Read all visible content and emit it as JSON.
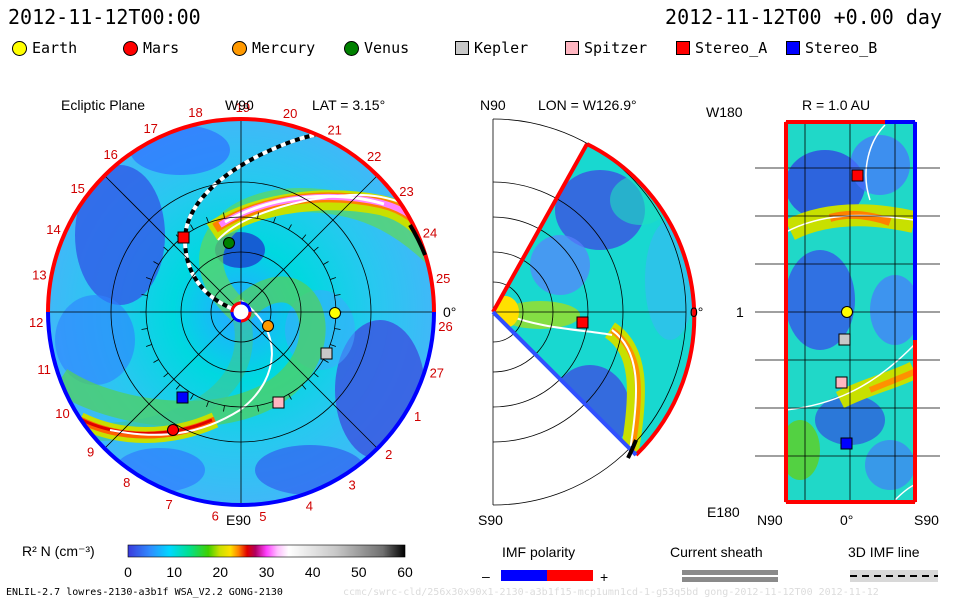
{
  "header": {
    "time_left": "2012-11-12T00:00",
    "time_right": "2012-11-12T00 +0.00 day"
  },
  "legend": [
    {
      "name": "Earth",
      "shape": "dot",
      "color": "#ffff00"
    },
    {
      "name": "Mars",
      "shape": "dot",
      "color": "#ff0000"
    },
    {
      "name": "Mercury",
      "shape": "dot",
      "color": "#ff9900"
    },
    {
      "name": "Venus",
      "shape": "dot",
      "color": "#008000"
    },
    {
      "name": "Kepler",
      "shape": "square",
      "color": "#c8c8c8"
    },
    {
      "name": "Spitzer",
      "shape": "square",
      "color": "#ffb6c1"
    },
    {
      "name": "Stereo_A",
      "shape": "square",
      "color": "#ff0000"
    },
    {
      "name": "Stereo_B",
      "shape": "square",
      "color": "#0000ff"
    }
  ],
  "panels": {
    "ecliptic": {
      "title": "Ecliptic Plane",
      "lat": "LAT = 3.15°",
      "top_label": "W90",
      "bottom_label": "E90",
      "right_label": "0°",
      "sector_numbers": [
        "1",
        "2",
        "3",
        "4",
        "5",
        "6",
        "7",
        "8",
        "9",
        "10",
        "11",
        "12",
        "13",
        "14",
        "15",
        "16",
        "17",
        "18",
        "19",
        "20",
        "21",
        "22",
        "23",
        "24",
        "25",
        "26",
        "27"
      ]
    },
    "meridional": {
      "title": "LON = W126.9°",
      "top_label": "N90",
      "bottom_label": "S90",
      "right_label": "0°"
    },
    "radial": {
      "title": "R = 1.0 AU",
      "top_label": "W180",
      "mid_label": "1",
      "bottom_label": "E180",
      "x_labels": [
        "N90",
        "0°",
        "S90"
      ]
    }
  },
  "colorbar": {
    "label": "R² N (cm⁻³)",
    "ticks": [
      "0",
      "10",
      "20",
      "30",
      "40",
      "50",
      "60"
    ]
  },
  "imf": {
    "title": "IMF polarity",
    "minus": "–",
    "plus": "+",
    "colors": [
      "#0000ff",
      "#ff0000"
    ]
  },
  "sheath": {
    "title": "Current sheath"
  },
  "line3d": {
    "title": "3D IMF line"
  },
  "footer": {
    "left": "ENLIL-2.7 lowres-2130-a3b1f WSA_V2.2 GONG-2130",
    "right": "ccmc/swrc-cld/256x30x90x1-2130-a3b1f15-mcp1umn1cd-1-g53q5bd gong-2012-11-12T00   2012-11-12"
  },
  "chart_data": {
    "type": "heatmap",
    "title": "2012-11-12T00:00",
    "quantity": "R² N (cm⁻³)",
    "scale_range": [
      0,
      60
    ],
    "colorbar_ticks": [
      0,
      10,
      20,
      30,
      40,
      50,
      60
    ],
    "bodies": [
      {
        "name": "Earth",
        "panel": "ecliptic",
        "angle_deg": 0,
        "r_au": 1.0
      },
      {
        "name": "Mercury",
        "panel": "ecliptic",
        "angle_deg": -38,
        "r_au": 0.45
      },
      {
        "name": "Venus",
        "panel": "ecliptic",
        "angle_deg": 100,
        "r_au": 0.72
      },
      {
        "name": "Mars",
        "panel": "ecliptic",
        "angle_deg": 240,
        "r_au": 1.45
      },
      {
        "name": "Kepler",
        "panel": "ecliptic",
        "angle_deg": -15,
        "r_au": 0.98
      },
      {
        "name": "Spitzer",
        "panel": "ecliptic",
        "angle_deg": -55,
        "r_au": 1.0
      },
      {
        "name": "Stereo_A",
        "panel": "ecliptic",
        "angle_deg": 126.9,
        "r_au": 0.96
      },
      {
        "name": "Stereo_B",
        "panel": "ecliptic",
        "angle_deg": 236,
        "r_au": 1.0
      }
    ],
    "sectors": 27
  }
}
